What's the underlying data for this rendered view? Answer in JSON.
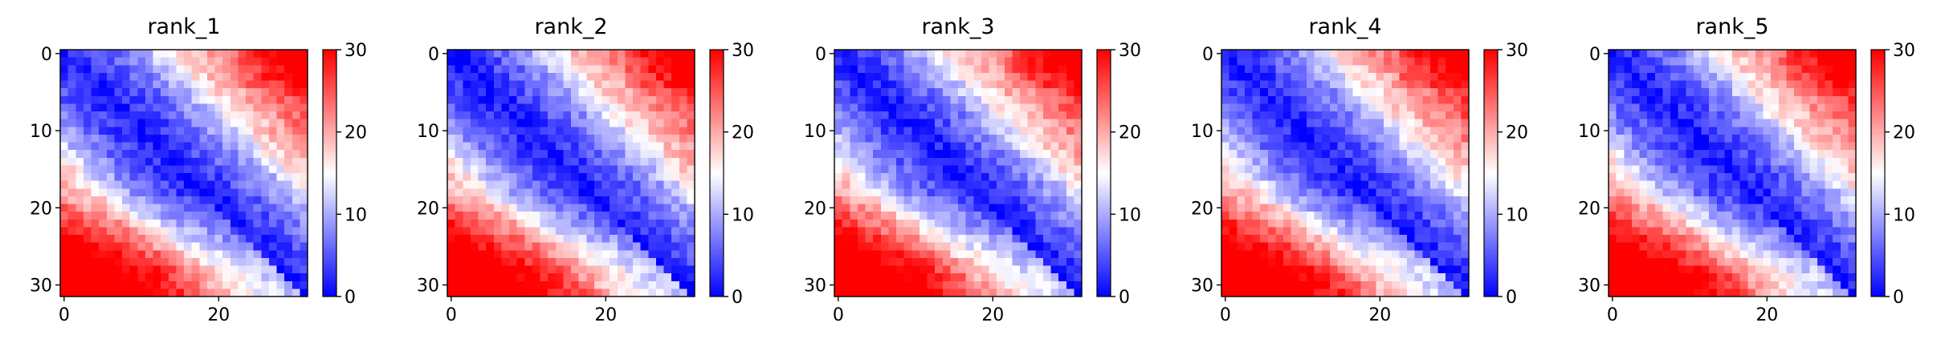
{
  "chart_data": [
    {
      "type": "heatmap",
      "title": "rank_1",
      "seed": 101,
      "x_ticks": [
        "0",
        "20"
      ],
      "y_ticks": [
        "0",
        "10",
        "20",
        "30"
      ],
      "colorbar": {
        "min": 0,
        "max": 30,
        "ticks": [
          "0",
          "10",
          "20",
          "30"
        ],
        "colormap": "bwr"
      },
      "matrix_size": 32
    },
    {
      "type": "heatmap",
      "title": "rank_2",
      "seed": 202,
      "x_ticks": [
        "0",
        "20"
      ],
      "y_ticks": [
        "0",
        "10",
        "20",
        "30"
      ],
      "colorbar": {
        "min": 0,
        "max": 30,
        "ticks": [
          "0",
          "10",
          "20",
          "30"
        ],
        "colormap": "bwr"
      },
      "matrix_size": 32
    },
    {
      "type": "heatmap",
      "title": "rank_3",
      "seed": 303,
      "x_ticks": [
        "0",
        "20"
      ],
      "y_ticks": [
        "0",
        "10",
        "20",
        "30"
      ],
      "colorbar": {
        "min": 0,
        "max": 30,
        "ticks": [
          "0",
          "10",
          "20",
          "30"
        ],
        "colormap": "bwr"
      },
      "matrix_size": 32
    },
    {
      "type": "heatmap",
      "title": "rank_4",
      "seed": 404,
      "x_ticks": [
        "0",
        "20"
      ],
      "y_ticks": [
        "0",
        "10",
        "20",
        "30"
      ],
      "colorbar": {
        "min": 0,
        "max": 30,
        "ticks": [
          "0",
          "10",
          "20",
          "30"
        ],
        "colormap": "bwr"
      },
      "matrix_size": 32
    },
    {
      "type": "heatmap",
      "title": "rank_5",
      "seed": 505,
      "x_ticks": [
        "0",
        "20"
      ],
      "y_ticks": [
        "0",
        "10",
        "20",
        "30"
      ],
      "colorbar": {
        "min": 0,
        "max": 30,
        "ticks": [
          "0",
          "10",
          "20",
          "30"
        ],
        "colormap": "bwr"
      },
      "matrix_size": 32
    }
  ],
  "colors": {
    "low": "#0000ff",
    "mid": "#ffffff",
    "high": "#ff0000",
    "axis": "#000000"
  }
}
